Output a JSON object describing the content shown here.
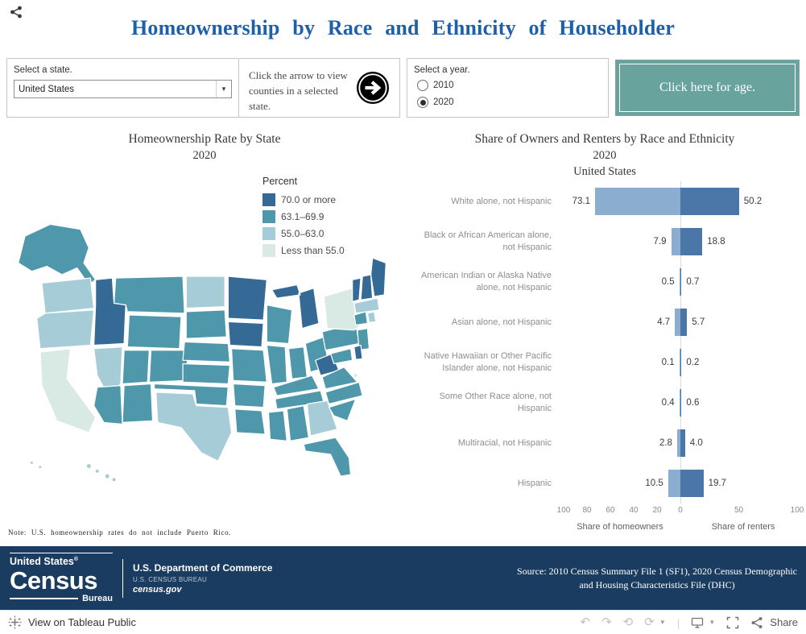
{
  "header": {
    "title": "Homeownership by Race and Ethnicity of Householder"
  },
  "controls": {
    "state": {
      "label": "Select a state.",
      "value": "United States"
    },
    "arrow_hint": "Click the arrow to view counties in a selected state.",
    "year": {
      "label": "Select a year.",
      "options": [
        {
          "label": "2010",
          "selected": false
        },
        {
          "label": "2020",
          "selected": true
        }
      ]
    },
    "age_button_label": "Click here for age."
  },
  "map": {
    "title": "Homeownership Rate by State",
    "subtitle": "2020",
    "legend": {
      "title": "Percent",
      "items": [
        {
          "label": "70.0 or more",
          "color": "#346a95"
        },
        {
          "label": "63.1–69.9",
          "color": "#4f97ab"
        },
        {
          "label": "55.0–63.0",
          "color": "#a6cdd7"
        },
        {
          "label": "Less than 55.0",
          "color": "#d8eae3"
        }
      ]
    },
    "note": "Note: U.S. homeownership rates do not include Puerto Rico.",
    "states": {
      "AK": 3,
      "HI": 2,
      "WA": 2,
      "OR": 2,
      "CA": 1,
      "NV": 2,
      "ID": 4,
      "MT": 3,
      "WY": 3,
      "UT": 3,
      "CO": 3,
      "AZ": 3,
      "NM": 3,
      "ND": 2,
      "SD": 3,
      "NE": 3,
      "KS": 3,
      "OK": 3,
      "TX": 2,
      "MN": 4,
      "IA": 4,
      "MO": 3,
      "AR": 3,
      "LA": 3,
      "WI": 3,
      "IL": 3,
      "MI": 4,
      "IN": 3,
      "OH": 3,
      "KY": 3,
      "TN": 3,
      "MS": 3,
      "AL": 3,
      "GA": 2,
      "FL": 3,
      "SC": 3,
      "NC": 3,
      "VA": 3,
      "WV": 4,
      "MD": 3,
      "DE": 4,
      "NJ": 3,
      "PA": 3,
      "NY": 1,
      "CT": 3,
      "RI": 2,
      "MA": 2,
      "VT": 4,
      "NH": 4,
      "ME": 4,
      "DC": 1
    }
  },
  "chart_data": {
    "type": "bar",
    "title": "Share of Owners and Renters by Race and Ethnicity",
    "subtitle": "2020",
    "region": "United States",
    "categories": [
      "White alone, not Hispanic",
      "Black or African American alone, not Hispanic",
      "American Indian or Alaska Native alone, not Hispanic",
      "Asian alone, not Hispanic",
      "Native Hawaiian or Other Pacific Islander alone, not Hispanic",
      "Some Other Race alone, not Hispanic",
      "Multiracial, not Hispanic",
      "Hispanic"
    ],
    "series": [
      {
        "name": "Share of homeowners",
        "color": "#8aadd0",
        "values": [
          73.1,
          7.9,
          0.5,
          4.7,
          0.1,
          0.4,
          2.8,
          10.5
        ]
      },
      {
        "name": "Share of renters",
        "color": "#4a77a8",
        "values": [
          50.2,
          18.8,
          0.7,
          5.7,
          0.2,
          0.6,
          4.0,
          19.7
        ]
      }
    ],
    "x_ticks_left": [
      100,
      80,
      60,
      40,
      20,
      0
    ],
    "x_ticks_right": [
      50,
      100
    ],
    "axis_label_left": "Share of homeowners",
    "axis_label_right": "Share of renters",
    "xlim": [
      0,
      100
    ],
    "grid": false,
    "legend_position": "none"
  },
  "footer": {
    "logo_top": "United States",
    "logo_reg": "®",
    "logo_main": "Census",
    "logo_sub": "Bureau",
    "dept": "U.S. Department of Commerce",
    "bureau": "U.S. CENSUS BUREAU",
    "site": "census.gov",
    "source": "Source: 2010 Census Summary File 1 (SF1), 2020 Census Demographic and Housing Characteristics File (DHC)"
  },
  "toolbar": {
    "view_label": "View on Tableau Public",
    "share_label": "Share"
  }
}
